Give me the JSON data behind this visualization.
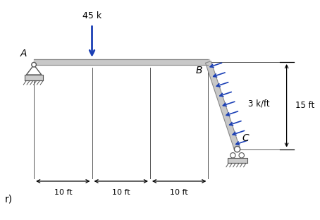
{
  "background_color": "#ffffff",
  "beam_color": "#c8c8c8",
  "beam_edge_color": "#888888",
  "load_arrow_color": "#1a3fb5",
  "dimension_color": "#000000",
  "point_A": [
    0.0,
    0.0
  ],
  "point_B": [
    3.0,
    0.0
  ],
  "point_C": [
    3.5,
    -1.5
  ],
  "label_A": "A",
  "label_B": "B",
  "label_C": "C",
  "load_45k_label": "45 k",
  "load_3kft_label": "3 k/ft",
  "dim_10ft_labels": [
    "10 ft",
    "10 ft",
    "10 ft"
  ],
  "dim_15ft_label": "15 ft",
  "note_label": "r)"
}
